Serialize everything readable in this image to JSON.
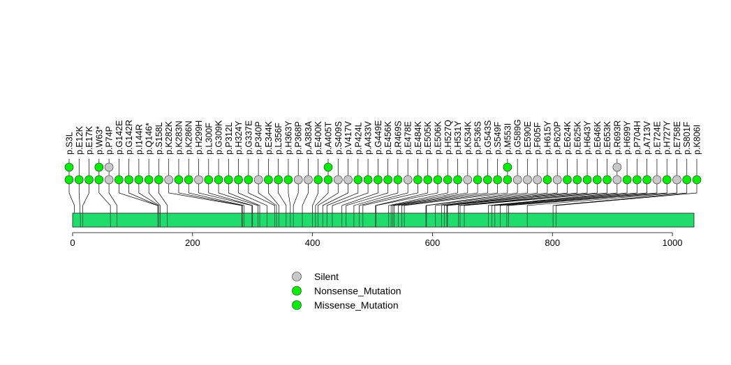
{
  "chart_data": {
    "type": "lollipop",
    "x_axis": {
      "range": [
        0,
        1036
      ],
      "ticks": [
        0,
        200,
        400,
        600,
        800,
        1000
      ]
    },
    "protein": {
      "start": 0,
      "end": 1036,
      "color": "#20dc6c"
    },
    "domain_edges": [
      13,
      17,
      63,
      74,
      142,
      144,
      146,
      158,
      282,
      283,
      286,
      299,
      300,
      309,
      312,
      324,
      337,
      340,
      344,
      356,
      363,
      368,
      383,
      400,
      405,
      409,
      417,
      424,
      433,
      449,
      456,
      469,
      478,
      484,
      505,
      506,
      527,
      531,
      534,
      536,
      543,
      549,
      553,
      589,
      590,
      605,
      615,
      620,
      624,
      625,
      643,
      646,
      653,
      693,
      699,
      704,
      713,
      724,
      727,
      758,
      801,
      806
    ],
    "legend": [
      {
        "label": "Silent",
        "color": "#c8c8c8"
      },
      {
        "label": "Nonsense_Mutation",
        "color": "#00ee00"
      },
      {
        "label": "Missense_Mutation",
        "color": "#00ee00"
      }
    ],
    "mutations": [
      {
        "label": "p.S3L",
        "pos": 3,
        "stack": [
          "Missense_Mutation",
          "Missense_Mutation"
        ]
      },
      {
        "label": "p.E12K",
        "pos": 12,
        "stack": [
          "Missense_Mutation"
        ]
      },
      {
        "label": "p.E17K",
        "pos": 17,
        "stack": [
          "Missense_Mutation"
        ]
      },
      {
        "label": "p.W63*",
        "pos": 63,
        "stack": [
          "Nonsense_Mutation",
          "Nonsense_Mutation"
        ]
      },
      {
        "label": "p.P74P",
        "pos": 74,
        "stack": [
          "Silent",
          "Silent"
        ]
      },
      {
        "label": "p.G142E",
        "pos": 142,
        "stack": [
          "Missense_Mutation"
        ]
      },
      {
        "label": "p.G142R",
        "pos": 142,
        "stack": [
          "Missense_Mutation"
        ]
      },
      {
        "label": "p.I144R",
        "pos": 144,
        "stack": [
          "Missense_Mutation"
        ]
      },
      {
        "label": "p.Q146*",
        "pos": 146,
        "stack": [
          "Nonsense_Mutation"
        ]
      },
      {
        "label": "p.S158L",
        "pos": 158,
        "stack": [
          "Missense_Mutation"
        ]
      },
      {
        "label": "p.K282K",
        "pos": 282,
        "stack": [
          "Silent"
        ]
      },
      {
        "label": "p.K283N",
        "pos": 283,
        "stack": [
          "Missense_Mutation"
        ]
      },
      {
        "label": "p.K286N",
        "pos": 286,
        "stack": [
          "Missense_Mutation"
        ]
      },
      {
        "label": "p.H299H",
        "pos": 299,
        "stack": [
          "Silent"
        ]
      },
      {
        "label": "p.L300F",
        "pos": 300,
        "stack": [
          "Missense_Mutation"
        ]
      },
      {
        "label": "p.G309K",
        "pos": 309,
        "stack": [
          "Missense_Mutation"
        ]
      },
      {
        "label": "p.P312L",
        "pos": 312,
        "stack": [
          "Missense_Mutation"
        ]
      },
      {
        "label": "p.H324Y",
        "pos": 324,
        "stack": [
          "Missense_Mutation"
        ]
      },
      {
        "label": "p.G337E",
        "pos": 337,
        "stack": [
          "Missense_Mutation"
        ]
      },
      {
        "label": "p.P340P",
        "pos": 340,
        "stack": [
          "Silent"
        ]
      },
      {
        "label": "p.E344K",
        "pos": 344,
        "stack": [
          "Missense_Mutation"
        ]
      },
      {
        "label": "p.L356F",
        "pos": 356,
        "stack": [
          "Missense_Mutation"
        ]
      },
      {
        "label": "p.H363Y",
        "pos": 363,
        "stack": [
          "Missense_Mutation"
        ]
      },
      {
        "label": "p.P368P",
        "pos": 368,
        "stack": [
          "Silent"
        ]
      },
      {
        "label": "p.A383A",
        "pos": 383,
        "stack": [
          "Silent"
        ]
      },
      {
        "label": "p.E400K",
        "pos": 400,
        "stack": [
          "Missense_Mutation"
        ]
      },
      {
        "label": "p.A405T",
        "pos": 405,
        "stack": [
          "Missense_Mutation",
          "Missense_Mutation"
        ]
      },
      {
        "label": "p.S409S",
        "pos": 409,
        "stack": [
          "Silent"
        ]
      },
      {
        "label": "p.V417V",
        "pos": 417,
        "stack": [
          "Silent"
        ]
      },
      {
        "label": "p.P424L",
        "pos": 424,
        "stack": [
          "Missense_Mutation"
        ]
      },
      {
        "label": "p.A433V",
        "pos": 433,
        "stack": [
          "Missense_Mutation"
        ]
      },
      {
        "label": "p.G449E",
        "pos": 449,
        "stack": [
          "Missense_Mutation"
        ]
      },
      {
        "label": "p.E456K",
        "pos": 456,
        "stack": [
          "Missense_Mutation"
        ]
      },
      {
        "label": "p.R469S",
        "pos": 469,
        "stack": [
          "Missense_Mutation"
        ]
      },
      {
        "label": "p.E478E",
        "pos": 478,
        "stack": [
          "Silent"
        ]
      },
      {
        "label": "p.E484K",
        "pos": 484,
        "stack": [
          "Missense_Mutation"
        ]
      },
      {
        "label": "p.E505K",
        "pos": 505,
        "stack": [
          "Missense_Mutation"
        ]
      },
      {
        "label": "p.E506K",
        "pos": 506,
        "stack": [
          "Missense_Mutation"
        ]
      },
      {
        "label": "p.H527Q",
        "pos": 527,
        "stack": [
          "Missense_Mutation"
        ]
      },
      {
        "label": "p.H531Y",
        "pos": 531,
        "stack": [
          "Missense_Mutation"
        ]
      },
      {
        "label": "p.K534K",
        "pos": 534,
        "stack": [
          "Silent"
        ]
      },
      {
        "label": "p.P536S",
        "pos": 536,
        "stack": [
          "Missense_Mutation"
        ]
      },
      {
        "label": "p.G543S",
        "pos": 543,
        "stack": [
          "Missense_Mutation"
        ]
      },
      {
        "label": "p.S549F",
        "pos": 549,
        "stack": [
          "Missense_Mutation"
        ]
      },
      {
        "label": "p.M553I",
        "pos": 553,
        "stack": [
          "Missense_Mutation",
          "Missense_Mutation"
        ]
      },
      {
        "label": "p.G589G",
        "pos": 589,
        "stack": [
          "Silent"
        ]
      },
      {
        "label": "p.E590E",
        "pos": 590,
        "stack": [
          "Silent"
        ]
      },
      {
        "label": "p.F605F",
        "pos": 605,
        "stack": [
          "Silent"
        ]
      },
      {
        "label": "p.H615Y",
        "pos": 615,
        "stack": [
          "Missense_Mutation"
        ]
      },
      {
        "label": "p.P620P",
        "pos": 620,
        "stack": [
          "Silent"
        ]
      },
      {
        "label": "p.E624K",
        "pos": 624,
        "stack": [
          "Missense_Mutation"
        ]
      },
      {
        "label": "p.E625K",
        "pos": 625,
        "stack": [
          "Missense_Mutation"
        ]
      },
      {
        "label": "p.H643Y",
        "pos": 643,
        "stack": [
          "Missense_Mutation"
        ]
      },
      {
        "label": "p.E646K",
        "pos": 646,
        "stack": [
          "Missense_Mutation"
        ]
      },
      {
        "label": "p.E653K",
        "pos": 653,
        "stack": [
          "Missense_Mutation"
        ]
      },
      {
        "label": "p.R693R",
        "pos": 693,
        "stack": [
          "Silent",
          "Silent"
        ]
      },
      {
        "label": "p.H699Y",
        "pos": 699,
        "stack": [
          "Missense_Mutation"
        ]
      },
      {
        "label": "p.P704H",
        "pos": 704,
        "stack": [
          "Missense_Mutation"
        ]
      },
      {
        "label": "p.A713V",
        "pos": 713,
        "stack": [
          "Missense_Mutation"
        ]
      },
      {
        "label": "p.E724E",
        "pos": 724,
        "stack": [
          "Silent"
        ]
      },
      {
        "label": "p.H727Y",
        "pos": 727,
        "stack": [
          "Missense_Mutation"
        ]
      },
      {
        "label": "p.E758E",
        "pos": 758,
        "stack": [
          "Silent"
        ]
      },
      {
        "label": "p.S801F",
        "pos": 801,
        "stack": [
          "Missense_Mutation"
        ]
      },
      {
        "label": "p.K806I",
        "pos": 806,
        "stack": [
          "Missense_Mutation"
        ]
      }
    ]
  }
}
